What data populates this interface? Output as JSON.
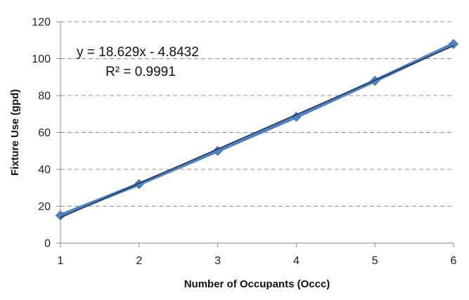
{
  "chart_data": {
    "type": "scatter",
    "title": "",
    "xlabel": "Number of Occupants (Occc)",
    "ylabel": "Fixture Use (gpd)",
    "xlim": [
      1,
      6
    ],
    "ylim": [
      0,
      120
    ],
    "x_ticks": [
      1,
      2,
      3,
      4,
      5,
      6
    ],
    "y_ticks": [
      0,
      20,
      40,
      60,
      80,
      100,
      120
    ],
    "grid": "horizontal-dashed",
    "legend": "none",
    "series": [
      {
        "x": [
          1,
          2,
          3,
          4,
          5,
          6
        ],
        "y": [
          15,
          32,
          50,
          68.5,
          88,
          108
        ],
        "marker": "diamond",
        "color": "#4F81BD"
      }
    ],
    "trendline": {
      "type": "linear",
      "slope": 18.629,
      "intercept": -4.8432,
      "color": "#1F3864",
      "equation": "y = 18.629x - 4.8432",
      "r_squared": "R² = 0.9991"
    }
  }
}
